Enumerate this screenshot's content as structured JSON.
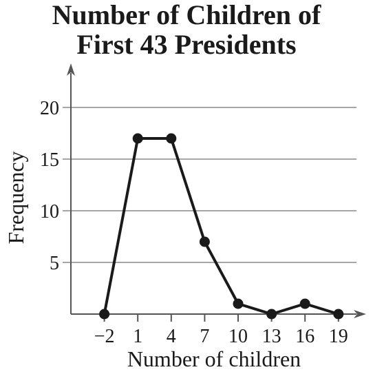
{
  "chart_data": {
    "type": "line",
    "title_lines": [
      "Number of Children of",
      "First 43 Presidents"
    ],
    "xlabel": "Number of children",
    "ylabel": "Frequency",
    "x": [
      -2,
      1,
      4,
      7,
      10,
      13,
      16,
      19
    ],
    "series": [
      {
        "values": [
          0,
          17,
          17,
          7,
          1,
          0,
          1,
          0
        ]
      }
    ],
    "x_tick_labels": [
      "−2",
      "1",
      "4",
      "7",
      "10",
      "13",
      "16",
      "19"
    ],
    "y_ticks": [
      5,
      10,
      15,
      20
    ],
    "y_tick_labels": [
      "5",
      "10",
      "15",
      "20"
    ],
    "ylim": [
      0,
      23
    ],
    "grid": true,
    "colors": {
      "line": "#1a1a1a",
      "grid": "#a6a6a6",
      "axis": "#555555"
    }
  }
}
